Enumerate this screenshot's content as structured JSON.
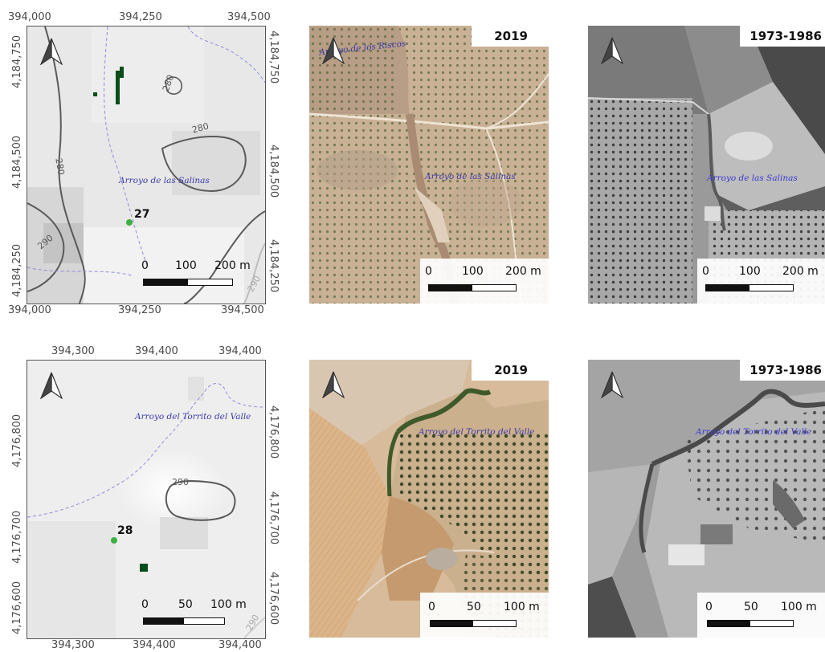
{
  "top_row": {
    "relief_map": {
      "x_ticks_top": [
        "394,000",
        "394,250",
        "394,500"
      ],
      "x_ticks_bottom": [
        "394,000",
        "394,250",
        "394,500"
      ],
      "y_ticks_left": [
        "4,184,750",
        "4,184,500",
        "4,184,250"
      ],
      "y_ticks_right": [
        "4,184,750",
        "4,184,500",
        "4,184,250"
      ],
      "stream_label": "Arroyo de las Salinas",
      "site_label": "27",
      "contour_labels": [
        "280",
        "280",
        "280",
        "290",
        "290"
      ],
      "scale": {
        "labels": [
          "0",
          "100",
          "200 m"
        ]
      }
    },
    "aerial_2019": {
      "year": "2019",
      "stream_labels": [
        "Arroyo de los Riscos",
        "Arroyo de las Salinas"
      ],
      "scale": {
        "labels": [
          "0",
          "100",
          "200 m"
        ]
      }
    },
    "aerial_historic": {
      "year": "1973-1986",
      "stream_label": "Arroyo de las Salinas",
      "scale": {
        "labels": [
          "0",
          "100",
          "200 m"
        ]
      }
    }
  },
  "bottom_row": {
    "relief_map": {
      "x_ticks_top": [
        "394,300",
        "394,400",
        "394,400"
      ],
      "x_ticks_bottom": [
        "394,300",
        "394,400",
        "394,400"
      ],
      "y_ticks_left": [
        "4,176,800",
        "4,176,700",
        "4,176,600"
      ],
      "y_ticks_right": [
        "4,176,800",
        "4,176,700",
        "4,176,600"
      ],
      "stream_label": "Arroyo del Torrito del Valle",
      "site_label": "28",
      "contour_labels": [
        "290",
        "290"
      ],
      "scale": {
        "labels": [
          "0",
          "50",
          "100 m"
        ]
      }
    },
    "aerial_2019": {
      "year": "2019",
      "stream_label": "Arroyo del Torrito del Valle",
      "scale": {
        "labels": [
          "0",
          "50",
          "100 m"
        ]
      }
    },
    "aerial_historic": {
      "year": "1973-1986",
      "stream_label": "Arroyo del Torrito del Valle",
      "scale": {
        "labels": [
          "0",
          "50",
          "100 m"
        ]
      }
    }
  },
  "colors": {
    "site_point": "#3cb043",
    "feature_dark_green": "#0b4d1a",
    "stream_text": "#3a3aa8",
    "contour": "#5a5a5a"
  },
  "icons": [
    "north-arrow-icon"
  ]
}
